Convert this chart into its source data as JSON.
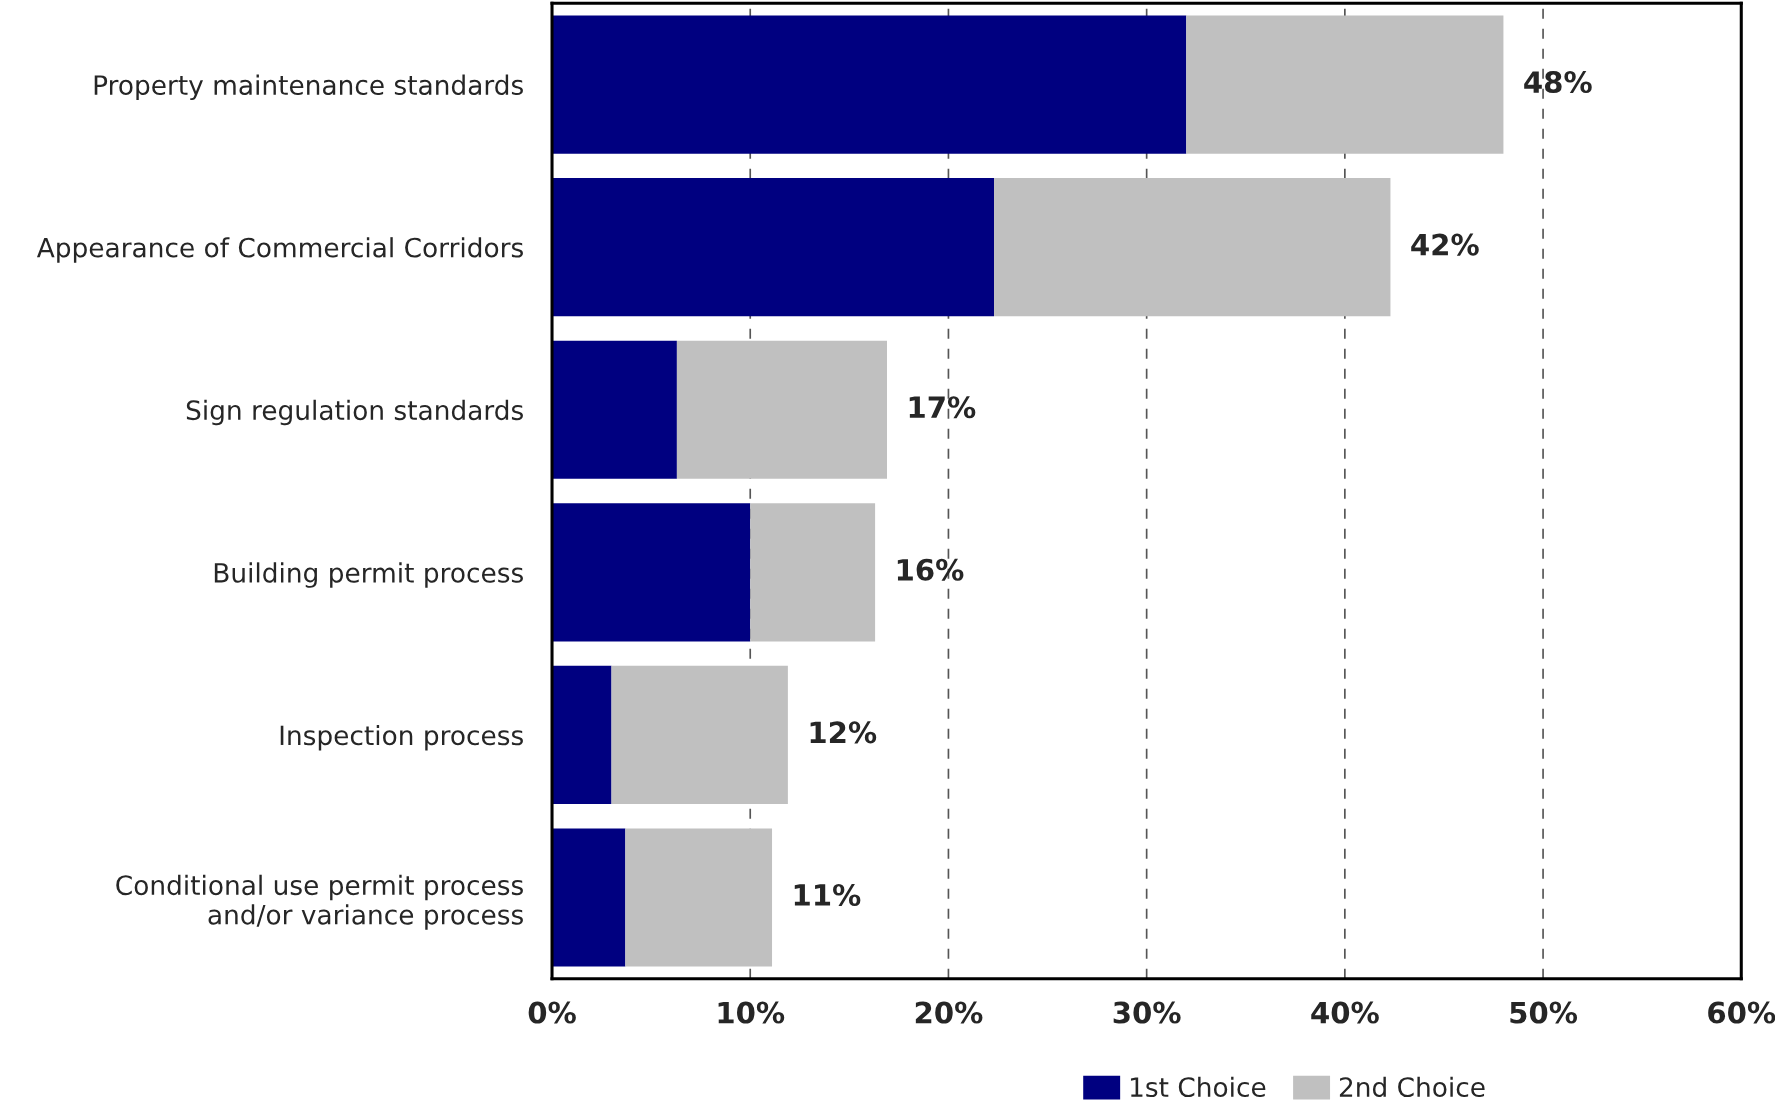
{
  "chart_data": {
    "type": "bar",
    "orientation": "horizontal",
    "stacked": true,
    "categories": [
      "Property maintenance standards",
      "Appearance of Commercial Corridors",
      "Sign regulation standards",
      "Building permit process",
      "Inspection process",
      "Conditional use permit process\nand/or variance process"
    ],
    "series": [
      {
        "name": "1st Choice",
        "color": "#000080",
        "values": [
          32,
          22.3,
          6.3,
          10,
          3,
          3.7
        ]
      },
      {
        "name": "2nd Choice",
        "color": "#c0c0c0",
        "values": [
          16,
          20,
          10.6,
          6.3,
          8.9,
          7.4
        ]
      }
    ],
    "xlim": [
      0,
      60
    ],
    "xticks": [
      {
        "value": 0,
        "label": "0%"
      },
      {
        "value": 10,
        "label": "10%"
      },
      {
        "value": 20,
        "label": "20%"
      },
      {
        "value": 30,
        "label": "30%"
      },
      {
        "value": 40,
        "label": "40%"
      },
      {
        "value": 50,
        "label": "50%"
      },
      {
        "value": 60,
        "label": "60%"
      }
    ],
    "grid": "x",
    "legend": "bottom",
    "totals": [
      "48%",
      "42%",
      "17%",
      "16%",
      "12%",
      "11%"
    ]
  }
}
